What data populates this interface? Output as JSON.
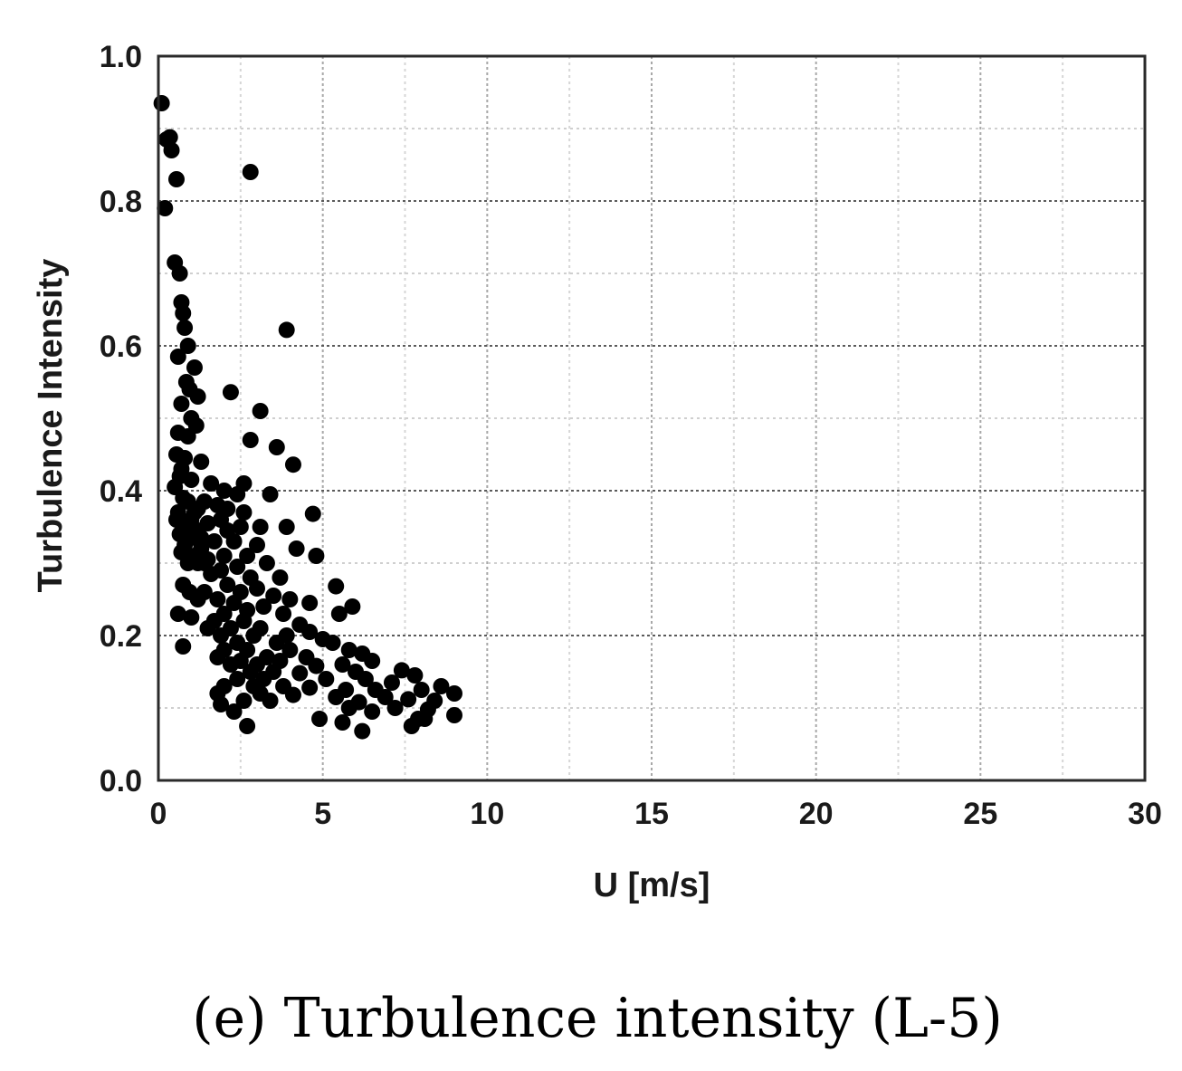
{
  "caption": "(e) Turbulence intensity (L-5)",
  "chart_data": {
    "type": "scatter",
    "xlabel": "U [m/s]",
    "ylabel": "Turbulence Intensity",
    "xlim": [
      0,
      30
    ],
    "ylim": [
      0,
      1.0
    ],
    "x_ticks": [
      "0",
      "5",
      "10",
      "15",
      "20",
      "25",
      "30"
    ],
    "y_ticks": [
      "0.0",
      "0.2",
      "0.4",
      "0.6",
      "0.8",
      "1.0"
    ],
    "grid": true,
    "marker_color": "#000000",
    "series": [
      {
        "points": [
          [
            0.1,
            0.935
          ],
          [
            0.25,
            0.885
          ],
          [
            0.35,
            0.888
          ],
          [
            0.4,
            0.87
          ],
          [
            0.2,
            0.79
          ],
          [
            0.55,
            0.83
          ],
          [
            2.8,
            0.84
          ],
          [
            0.5,
            0.715
          ],
          [
            0.65,
            0.7
          ],
          [
            0.7,
            0.66
          ],
          [
            0.75,
            0.645
          ],
          [
            0.8,
            0.625
          ],
          [
            0.9,
            0.6
          ],
          [
            3.9,
            0.622
          ],
          [
            0.6,
            0.585
          ],
          [
            1.1,
            0.57
          ],
          [
            0.85,
            0.55
          ],
          [
            0.95,
            0.54
          ],
          [
            1.2,
            0.53
          ],
          [
            2.2,
            0.536
          ],
          [
            0.7,
            0.52
          ],
          [
            1.0,
            0.5
          ],
          [
            1.15,
            0.49
          ],
          [
            3.1,
            0.51
          ],
          [
            0.6,
            0.48
          ],
          [
            0.9,
            0.475
          ],
          [
            2.8,
            0.47
          ],
          [
            3.6,
            0.46
          ],
          [
            0.55,
            0.45
          ],
          [
            0.8,
            0.445
          ],
          [
            1.3,
            0.44
          ],
          [
            4.1,
            0.436
          ],
          [
            0.7,
            0.43
          ],
          [
            0.65,
            0.42
          ],
          [
            1.0,
            0.415
          ],
          [
            0.5,
            0.405
          ],
          [
            1.6,
            0.41
          ],
          [
            2.6,
            0.41
          ],
          [
            2.0,
            0.4
          ],
          [
            2.4,
            0.395
          ],
          [
            3.4,
            0.395
          ],
          [
            0.75,
            0.39
          ],
          [
            0.9,
            0.385
          ],
          [
            1.4,
            0.385
          ],
          [
            1.8,
            0.38
          ],
          [
            2.1,
            0.375
          ],
          [
            0.6,
            0.37
          ],
          [
            1.1,
            0.37
          ],
          [
            4.7,
            0.368
          ],
          [
            0.55,
            0.36
          ],
          [
            0.85,
            0.355
          ],
          [
            1.5,
            0.355
          ],
          [
            2.5,
            0.35
          ],
          [
            3.9,
            0.35
          ],
          [
            1.2,
            0.345
          ],
          [
            3.1,
            0.35
          ],
          [
            0.65,
            0.34
          ],
          [
            1.0,
            0.335
          ],
          [
            1.7,
            0.33
          ],
          [
            2.3,
            0.33
          ],
          [
            0.8,
            0.325
          ],
          [
            1.3,
            0.32
          ],
          [
            3.0,
            0.325
          ],
          [
            4.2,
            0.32
          ],
          [
            0.7,
            0.315
          ],
          [
            1.1,
            0.31
          ],
          [
            2.0,
            0.31
          ],
          [
            2.7,
            0.31
          ],
          [
            4.8,
            0.31
          ],
          [
            0.9,
            0.3
          ],
          [
            1.4,
            0.3
          ],
          [
            3.3,
            0.3
          ],
          [
            1.9,
            0.29
          ],
          [
            2.4,
            0.295
          ],
          [
            1.6,
            0.285
          ],
          [
            2.8,
            0.28
          ],
          [
            3.7,
            0.28
          ],
          [
            0.75,
            0.27
          ],
          [
            2.1,
            0.27
          ],
          [
            3.0,
            0.265
          ],
          [
            5.4,
            0.268
          ],
          [
            0.95,
            0.26
          ],
          [
            2.5,
            0.26
          ],
          [
            3.5,
            0.255
          ],
          [
            1.2,
            0.25
          ],
          [
            1.8,
            0.25
          ],
          [
            4.0,
            0.25
          ],
          [
            4.6,
            0.245
          ],
          [
            2.3,
            0.245
          ],
          [
            3.2,
            0.24
          ],
          [
            5.9,
            0.24
          ],
          [
            2.7,
            0.235
          ],
          [
            0.6,
            0.23
          ],
          [
            1.0,
            0.225
          ],
          [
            2.0,
            0.23
          ],
          [
            3.8,
            0.23
          ],
          [
            5.5,
            0.23
          ],
          [
            1.7,
            0.22
          ],
          [
            2.6,
            0.22
          ],
          [
            4.3,
            0.215
          ],
          [
            1.5,
            0.21
          ],
          [
            2.2,
            0.21
          ],
          [
            3.1,
            0.21
          ],
          [
            4.6,
            0.205
          ],
          [
            1.9,
            0.2
          ],
          [
            2.9,
            0.2
          ],
          [
            3.9,
            0.2
          ],
          [
            5.0,
            0.195
          ],
          [
            0.75,
            0.185
          ],
          [
            2.4,
            0.19
          ],
          [
            3.6,
            0.19
          ],
          [
            5.3,
            0.19
          ],
          [
            2.0,
            0.18
          ],
          [
            2.7,
            0.18
          ],
          [
            4.0,
            0.18
          ],
          [
            5.8,
            0.18
          ],
          [
            6.2,
            0.175
          ],
          [
            1.8,
            0.17
          ],
          [
            3.3,
            0.17
          ],
          [
            4.5,
            0.17
          ],
          [
            2.5,
            0.165
          ],
          [
            3.7,
            0.165
          ],
          [
            6.5,
            0.165
          ],
          [
            2.2,
            0.16
          ],
          [
            3.0,
            0.16
          ],
          [
            4.8,
            0.158
          ],
          [
            5.6,
            0.16
          ],
          [
            7.4,
            0.152
          ],
          [
            2.8,
            0.15
          ],
          [
            3.5,
            0.15
          ],
          [
            4.3,
            0.148
          ],
          [
            6.0,
            0.15
          ],
          [
            7.8,
            0.145
          ],
          [
            2.4,
            0.14
          ],
          [
            3.2,
            0.14
          ],
          [
            5.1,
            0.14
          ],
          [
            6.3,
            0.14
          ],
          [
            7.1,
            0.135
          ],
          [
            8.6,
            0.13
          ],
          [
            2.0,
            0.13
          ],
          [
            2.9,
            0.13
          ],
          [
            3.8,
            0.13
          ],
          [
            4.6,
            0.128
          ],
          [
            5.7,
            0.125
          ],
          [
            6.6,
            0.125
          ],
          [
            8.0,
            0.125
          ],
          [
            9.0,
            0.12
          ],
          [
            1.8,
            0.12
          ],
          [
            3.1,
            0.12
          ],
          [
            4.1,
            0.118
          ],
          [
            5.4,
            0.115
          ],
          [
            6.9,
            0.115
          ],
          [
            7.6,
            0.112
          ],
          [
            8.4,
            0.11
          ],
          [
            2.6,
            0.11
          ],
          [
            3.4,
            0.11
          ],
          [
            6.1,
            0.108
          ],
          [
            1.9,
            0.105
          ],
          [
            5.8,
            0.1
          ],
          [
            7.2,
            0.1
          ],
          [
            8.2,
            0.098
          ],
          [
            2.3,
            0.095
          ],
          [
            6.5,
            0.095
          ],
          [
            9.0,
            0.09
          ],
          [
            4.9,
            0.085
          ],
          [
            5.6,
            0.08
          ],
          [
            7.9,
            0.085
          ],
          [
            8.1,
            0.085
          ],
          [
            2.7,
            0.075
          ],
          [
            6.2,
            0.068
          ],
          [
            7.7,
            0.075
          ],
          [
            1.4,
            0.26
          ],
          [
            1.3,
            0.335
          ],
          [
            1.5,
            0.305
          ],
          [
            2.1,
            0.345
          ],
          [
            2.6,
            0.37
          ],
          [
            1.2,
            0.375
          ],
          [
            0.8,
            0.35
          ],
          [
            1.9,
            0.36
          ],
          [
            1.0,
            0.36
          ],
          [
            1.2,
            0.3
          ]
        ]
      }
    ]
  }
}
